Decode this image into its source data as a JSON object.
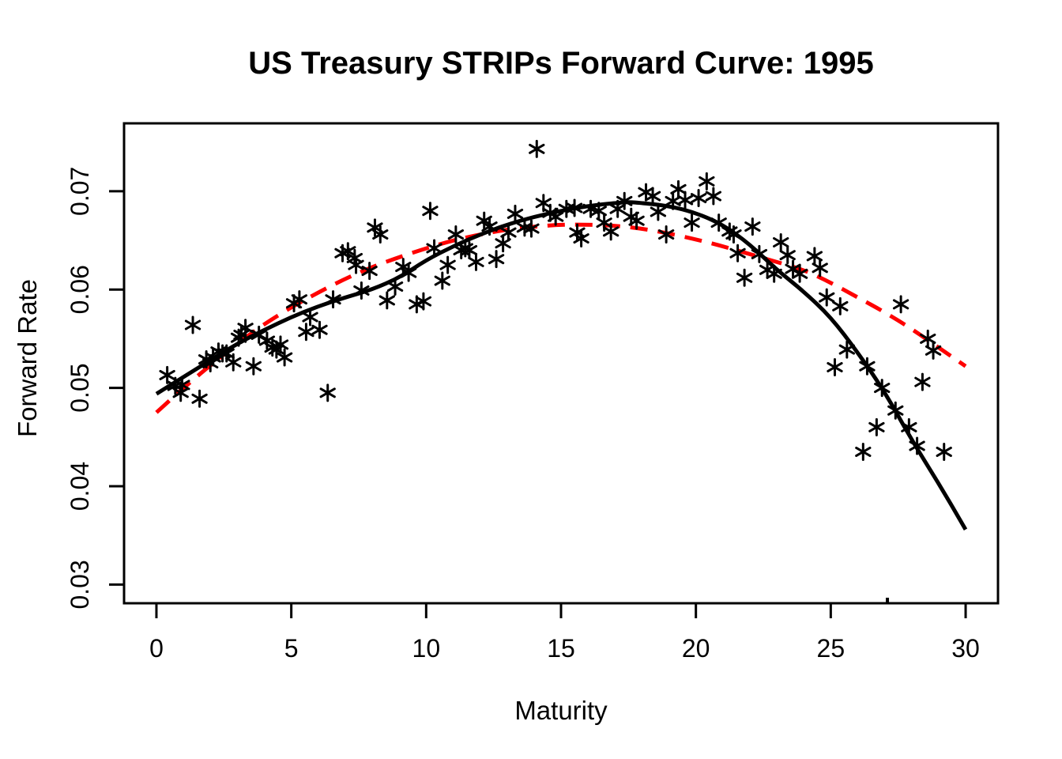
{
  "background": "#ffffff",
  "chart_data": {
    "type": "scatter",
    "title": "US Treasury STRIPs Forward Curve: 1995",
    "xlabel": "Maturity",
    "ylabel": "Forward Rate",
    "xlim": [
      -1.2,
      31.2
    ],
    "ylim": [
      0.0281,
      0.0769
    ],
    "grid": false,
    "legend": "none",
    "axis_color": "#000000",
    "x_ticks": [
      {
        "value": 0,
        "label": "0"
      },
      {
        "value": 5,
        "label": "5"
      },
      {
        "value": 10,
        "label": "10"
      },
      {
        "value": 15,
        "label": "15"
      },
      {
        "value": 20,
        "label": "20"
      },
      {
        "value": 25,
        "label": "25"
      },
      {
        "value": 30,
        "label": "30"
      }
    ],
    "y_ticks": [
      {
        "value": 0.03,
        "label": "0.03"
      },
      {
        "value": 0.04,
        "label": "0.04"
      },
      {
        "value": 0.05,
        "label": "0.05"
      },
      {
        "value": 0.06,
        "label": "0.06"
      },
      {
        "value": 0.07,
        "label": "0.07"
      }
    ],
    "series": [
      {
        "name": "strips-observed-forward-rates",
        "type": "scatter",
        "marker": "asterisk",
        "color": "#000000",
        "points": [
          [
            0.4,
            0.0513
          ],
          [
            0.7,
            0.0502
          ],
          [
            0.9,
            0.0495
          ],
          [
            0.95,
            0.0503
          ],
          [
            1.35,
            0.0564
          ],
          [
            1.6,
            0.0489
          ],
          [
            1.85,
            0.0529
          ],
          [
            2.0,
            0.0525
          ],
          [
            2.1,
            0.0531
          ],
          [
            2.3,
            0.0537
          ],
          [
            2.45,
            0.0535
          ],
          [
            2.6,
            0.0535
          ],
          [
            2.85,
            0.0526
          ],
          [
            3.05,
            0.0551
          ],
          [
            3.15,
            0.0554
          ],
          [
            3.3,
            0.0561
          ],
          [
            3.6,
            0.0522
          ],
          [
            3.8,
            0.0554
          ],
          [
            4.1,
            0.0548
          ],
          [
            4.3,
            0.0541
          ],
          [
            4.45,
            0.0539
          ],
          [
            4.6,
            0.0544
          ],
          [
            4.75,
            0.0531
          ],
          [
            5.1,
            0.0586
          ],
          [
            5.3,
            0.059
          ],
          [
            5.55,
            0.0557
          ],
          [
            5.7,
            0.0572
          ],
          [
            6.05,
            0.0559
          ],
          [
            6.35,
            0.0495
          ],
          [
            6.55,
            0.059
          ],
          [
            6.9,
            0.0637
          ],
          [
            7.1,
            0.0639
          ],
          [
            7.35,
            0.0632
          ],
          [
            7.4,
            0.0625
          ],
          [
            7.6,
            0.0599
          ],
          [
            7.9,
            0.0619
          ],
          [
            8.1,
            0.0663
          ],
          [
            8.3,
            0.0656
          ],
          [
            8.55,
            0.0589
          ],
          [
            8.85,
            0.0603
          ],
          [
            9.15,
            0.0623
          ],
          [
            9.35,
            0.0617
          ],
          [
            9.65,
            0.0585
          ],
          [
            9.9,
            0.0588
          ],
          [
            10.15,
            0.068
          ],
          [
            10.3,
            0.0642
          ],
          [
            10.6,
            0.0609
          ],
          [
            10.8,
            0.0625
          ],
          [
            11.1,
            0.0656
          ],
          [
            11.3,
            0.064
          ],
          [
            11.45,
            0.0642
          ],
          [
            11.6,
            0.064
          ],
          [
            11.85,
            0.0628
          ],
          [
            12.15,
            0.067
          ],
          [
            12.35,
            0.0664
          ],
          [
            12.6,
            0.0631
          ],
          [
            12.85,
            0.0647
          ],
          [
            13.05,
            0.0658
          ],
          [
            13.3,
            0.0677
          ],
          [
            13.65,
            0.0663
          ],
          [
            13.9,
            0.0662
          ],
          [
            14.1,
            0.0743
          ],
          [
            14.35,
            0.0688
          ],
          [
            14.6,
            0.0678
          ],
          [
            14.8,
            0.0674
          ],
          [
            15.2,
            0.0682
          ],
          [
            15.5,
            0.0683
          ],
          [
            15.6,
            0.0658
          ],
          [
            15.75,
            0.0652
          ],
          [
            16.1,
            0.0682
          ],
          [
            16.4,
            0.068
          ],
          [
            16.6,
            0.0668
          ],
          [
            16.85,
            0.0659
          ],
          [
            17.1,
            0.0682
          ],
          [
            17.35,
            0.069
          ],
          [
            17.6,
            0.0674
          ],
          [
            17.8,
            0.067
          ],
          [
            18.15,
            0.0699
          ],
          [
            18.4,
            0.0695
          ],
          [
            18.6,
            0.0679
          ],
          [
            18.9,
            0.0656
          ],
          [
            19.15,
            0.069
          ],
          [
            19.35,
            0.0702
          ],
          [
            19.6,
            0.0691
          ],
          [
            19.85,
            0.0668
          ],
          [
            20.1,
            0.0693
          ],
          [
            20.4,
            0.071
          ],
          [
            20.65,
            0.0695
          ],
          [
            20.85,
            0.0668
          ],
          [
            21.25,
            0.0659
          ],
          [
            21.4,
            0.0656
          ],
          [
            21.55,
            0.0637
          ],
          [
            21.8,
            0.0612
          ],
          [
            22.1,
            0.0664
          ],
          [
            22.35,
            0.0636
          ],
          [
            22.65,
            0.062
          ],
          [
            22.9,
            0.0616
          ],
          [
            23.15,
            0.0648
          ],
          [
            23.4,
            0.0635
          ],
          [
            23.6,
            0.0621
          ],
          [
            23.85,
            0.0616
          ],
          [
            24.4,
            0.0634
          ],
          [
            24.6,
            0.0622
          ],
          [
            24.85,
            0.0592
          ],
          [
            25.15,
            0.0521
          ],
          [
            25.35,
            0.0583
          ],
          [
            25.6,
            0.0539
          ],
          [
            26.2,
            0.0435
          ],
          [
            26.35,
            0.0522
          ],
          [
            26.7,
            0.046
          ],
          [
            26.9,
            0.05
          ],
          [
            27.4,
            0.0477
          ],
          [
            27.6,
            0.0585
          ],
          [
            27.9,
            0.046
          ],
          [
            28.2,
            0.0441
          ],
          [
            28.4,
            0.0506
          ],
          [
            28.6,
            0.055
          ],
          [
            28.8,
            0.0538
          ],
          [
            29.2,
            0.0435
          ]
        ]
      },
      {
        "name": "fitted-curve-solid-black",
        "type": "line",
        "style": "solid",
        "color": "#000000",
        "width": 5,
        "points": [
          [
            0,
            0.0494
          ],
          [
            1,
            0.0511
          ],
          [
            2,
            0.0528
          ],
          [
            3,
            0.0545
          ],
          [
            4,
            0.0559
          ],
          [
            5,
            0.0572
          ],
          [
            6,
            0.0583
          ],
          [
            7,
            0.0592
          ],
          [
            8,
            0.06
          ],
          [
            9,
            0.0612
          ],
          [
            10,
            0.063
          ],
          [
            11,
            0.0644
          ],
          [
            12,
            0.0656
          ],
          [
            13,
            0.0666
          ],
          [
            14,
            0.0674
          ],
          [
            15,
            0.068
          ],
          [
            16,
            0.0685
          ],
          [
            17,
            0.0688
          ],
          [
            17.5,
            0.0689
          ],
          [
            18,
            0.0688
          ],
          [
            19,
            0.0685
          ],
          [
            20,
            0.0678
          ],
          [
            21,
            0.0666
          ],
          [
            22,
            0.0646
          ],
          [
            23,
            0.062
          ],
          [
            24,
            0.0598
          ],
          [
            25,
            0.0572
          ],
          [
            26,
            0.0536
          ],
          [
            27,
            0.0496
          ],
          [
            28,
            0.0447
          ],
          [
            29,
            0.0403
          ],
          [
            30,
            0.0356
          ]
        ]
      },
      {
        "name": "fitted-curve-dashed-red",
        "type": "line",
        "style": "dashed",
        "color": "#FF0000",
        "width": 5,
        "dash": [
          22,
          13
        ],
        "points": [
          [
            0,
            0.0475
          ],
          [
            1,
            0.05
          ],
          [
            2,
            0.0523
          ],
          [
            3,
            0.0545
          ],
          [
            4,
            0.0565
          ],
          [
            5,
            0.0582
          ],
          [
            6,
            0.0597
          ],
          [
            7,
            0.0611
          ],
          [
            8,
            0.0623
          ],
          [
            9,
            0.0633
          ],
          [
            10,
            0.0642
          ],
          [
            11,
            0.065
          ],
          [
            12,
            0.0656
          ],
          [
            13,
            0.0661
          ],
          [
            14,
            0.0664
          ],
          [
            15,
            0.0666
          ],
          [
            16,
            0.0666
          ],
          [
            17,
            0.0665
          ],
          [
            18,
            0.0662
          ],
          [
            19,
            0.0657
          ],
          [
            20,
            0.0651
          ],
          [
            21,
            0.0644
          ],
          [
            22,
            0.0636
          ],
          [
            23,
            0.0628
          ],
          [
            24,
            0.062
          ],
          [
            25,
            0.0607
          ],
          [
            26,
            0.0592
          ],
          [
            27,
            0.0577
          ],
          [
            28,
            0.056
          ],
          [
            29,
            0.0541
          ],
          [
            30,
            0.0522
          ]
        ]
      }
    ],
    "clipped_point": {
      "x": 27.1
    }
  }
}
